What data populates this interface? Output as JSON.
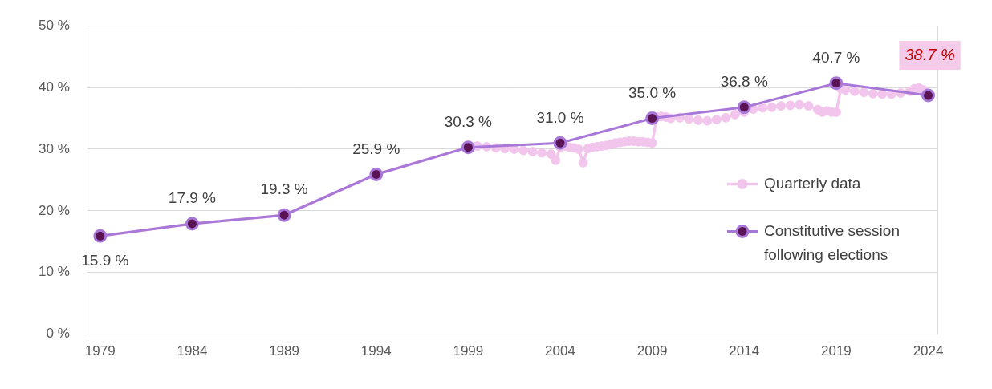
{
  "chart_data": {
    "type": "line",
    "xlim": [
      1978.3,
      2024.5
    ],
    "xticks": [
      1979,
      1984,
      1989,
      1994,
      1999,
      2004,
      2009,
      2014,
      2019,
      2024
    ],
    "ylim": [
      0,
      50
    ],
    "yticks": [
      {
        "value": 0,
        "label": "0 %"
      },
      {
        "value": 10,
        "label": "10 %"
      },
      {
        "value": 20,
        "label": "20 %"
      },
      {
        "value": 30,
        "label": "30 %"
      },
      {
        "value": 40,
        "label": "40 %"
      },
      {
        "value": 50,
        "label": "50 %"
      }
    ],
    "grid": true,
    "legend": "right",
    "series": [
      {
        "name": "Quarterly data",
        "color": "#f2c6ec",
        "marker": "circle",
        "line_style": "solid",
        "x": [
          1979,
          1984,
          1989,
          1994,
          1999,
          1999.5,
          2000,
          2000.5,
          2001,
          2001.5,
          2002,
          2002.5,
          2003,
          2003.5,
          2003.75,
          2004,
          2004.25,
          2004.5,
          2004.75,
          2005,
          2005.25,
          2005.5,
          2005.75,
          2006,
          2006.25,
          2006.5,
          2006.75,
          2007,
          2007.25,
          2007.5,
          2007.75,
          2008,
          2008.25,
          2008.5,
          2008.75,
          2009,
          2009.25,
          2009.5,
          2009.75,
          2010,
          2010.5,
          2011,
          2011.5,
          2012,
          2012.5,
          2013,
          2013.5,
          2014,
          2014.5,
          2015,
          2015.5,
          2016,
          2016.5,
          2017,
          2017.5,
          2018,
          2018.25,
          2018.5,
          2018.75,
          2019,
          2019.25,
          2019.5,
          2020,
          2020.5,
          2021,
          2021.5,
          2022,
          2022.5,
          2023,
          2023.25,
          2023.5,
          2023.75,
          2024
        ],
        "values": [
          15.9,
          17.9,
          19.3,
          25.9,
          30.3,
          30.5,
          30.4,
          30.2,
          30.1,
          30.0,
          29.8,
          29.6,
          29.4,
          29.2,
          28.2,
          30.3,
          30.5,
          30.3,
          30.2,
          30.0,
          27.8,
          30.1,
          30.3,
          30.4,
          30.5,
          30.6,
          30.8,
          31.0,
          31.1,
          31.2,
          31.3,
          31.3,
          31.2,
          31.2,
          31.1,
          31.0,
          35.2,
          35.3,
          35.2,
          35.0,
          35.1,
          34.9,
          34.7,
          34.6,
          34.8,
          35.1,
          35.6,
          36.0,
          36.5,
          36.7,
          36.8,
          37.0,
          37.1,
          37.2,
          37.0,
          36.4,
          36.0,
          36.2,
          36.0,
          36.0,
          39.8,
          39.6,
          39.4,
          39.2,
          39.0,
          38.9,
          38.9,
          39.1,
          39.4,
          39.8,
          39.9,
          39.6,
          38.7
        ]
      },
      {
        "name": "Constitutive session following elections",
        "color": "#a878d8",
        "marker": "circle",
        "line_style": "solid",
        "data_labels": true,
        "x": [
          1979,
          1984,
          1989,
          1994,
          1999,
          2004,
          2009,
          2014,
          2019,
          2024
        ],
        "values": [
          15.9,
          17.9,
          19.3,
          25.9,
          30.3,
          31.0,
          35.0,
          36.8,
          40.7,
          38.7
        ],
        "value_labels": [
          "15.9 %",
          "17.9 %",
          "19.3 %",
          "25.9 %",
          "30.3 %",
          "31.0 %",
          "35.0 %",
          "36.8 %",
          "40.7 %",
          "38.7 %"
        ]
      }
    ]
  }
}
